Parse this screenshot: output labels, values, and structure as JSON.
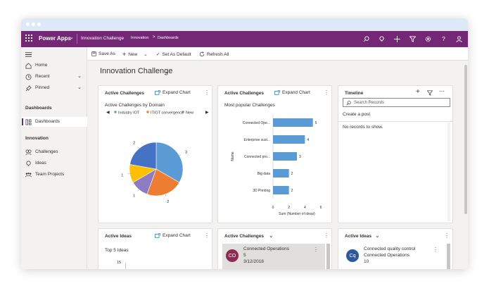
{
  "app": {
    "name": "Power Apps",
    "app_title": "Innovation Challenge",
    "breadcrumb": [
      "Innovation",
      "Dashboards"
    ]
  },
  "commands": [
    "Save As",
    "New",
    "Set As Default",
    "Refresh All"
  ],
  "sidebar": {
    "items": [
      {
        "label": "Home",
        "icon": "home-icon"
      },
      {
        "label": "Recent",
        "icon": "clock-icon"
      },
      {
        "label": "Pinned",
        "icon": "pin-icon"
      }
    ],
    "sections": [
      {
        "title": "Dashboards",
        "items": [
          {
            "label": "Dashboards",
            "icon": "dashboard-icon",
            "active": true
          }
        ]
      },
      {
        "title": "Innovation",
        "items": [
          {
            "label": "Challenges",
            "icon": "challenges-icon"
          },
          {
            "label": "Ideas",
            "icon": "lightbulb-icon"
          },
          {
            "label": "Team Projects",
            "icon": "team-icon"
          }
        ]
      }
    ]
  },
  "page": {
    "title": "Innovation Challenge"
  },
  "cards": {
    "pie": {
      "title": "Active Challenges",
      "expand_label": "Expand Chart",
      "chart_title": "Active Challenges by Domain"
    },
    "bar": {
      "title": "Active Challenges",
      "expand_label": "Expand Chart",
      "chart_title": "Most popular Challenges"
    },
    "timeline": {
      "title": "Timeline",
      "search_placeholder": "Search Records",
      "create_post": "Create a post",
      "empty": "No records to show."
    },
    "ideas": {
      "title": "Active Ideas",
      "expand_label": "Expand Chart",
      "chart_title": "Top 5 Ideas",
      "ytick": "15"
    },
    "challenges_list": {
      "title": "Active Challenges",
      "rows": [
        {
          "initials": "CO",
          "avatar_color": "#8d2b52",
          "name": "Connected Operations",
          "count": "5",
          "date": "3/12/2018"
        }
      ]
    },
    "ideas_list": {
      "title": "Active Ideas",
      "rows": [
        {
          "initials": "Cq",
          "avatar_color": "#2b5aa0",
          "name": "Connected quality control",
          "challenge": "Connected Operations",
          "count": "10"
        }
      ]
    }
  },
  "chart_data": [
    {
      "type": "pie",
      "title": "Active Challenges by Domain",
      "legend": [
        "Industry IOT",
        "IT/OT convergence",
        "New"
      ],
      "legend_colors": [
        "#5b9bd5",
        "#ed7d31",
        "#8e7cc3"
      ],
      "slices": [
        {
          "value": 3,
          "color": "#5b9bd5"
        },
        {
          "value": 2,
          "color": "#ed7d31"
        },
        {
          "value": 1,
          "color": "#8e7cc3"
        },
        {
          "value": 1,
          "color": "#ffc000"
        },
        {
          "value": 2,
          "color": "#4472c4"
        }
      ]
    },
    {
      "type": "bar",
      "title": "Most popular Challenges",
      "categories": [
        "Connected Ope...",
        "Enterprise sust...",
        "Connected pro...",
        "Big data",
        "3D Printing"
      ],
      "values": [
        5,
        4,
        3,
        2,
        2
      ],
      "xlabel": "Sum (Number of ideas)",
      "ylabel": "Name",
      "xticks": [
        0,
        2,
        4,
        6
      ],
      "xlim": [
        0,
        6
      ],
      "color": "#5b9bd5"
    }
  ]
}
